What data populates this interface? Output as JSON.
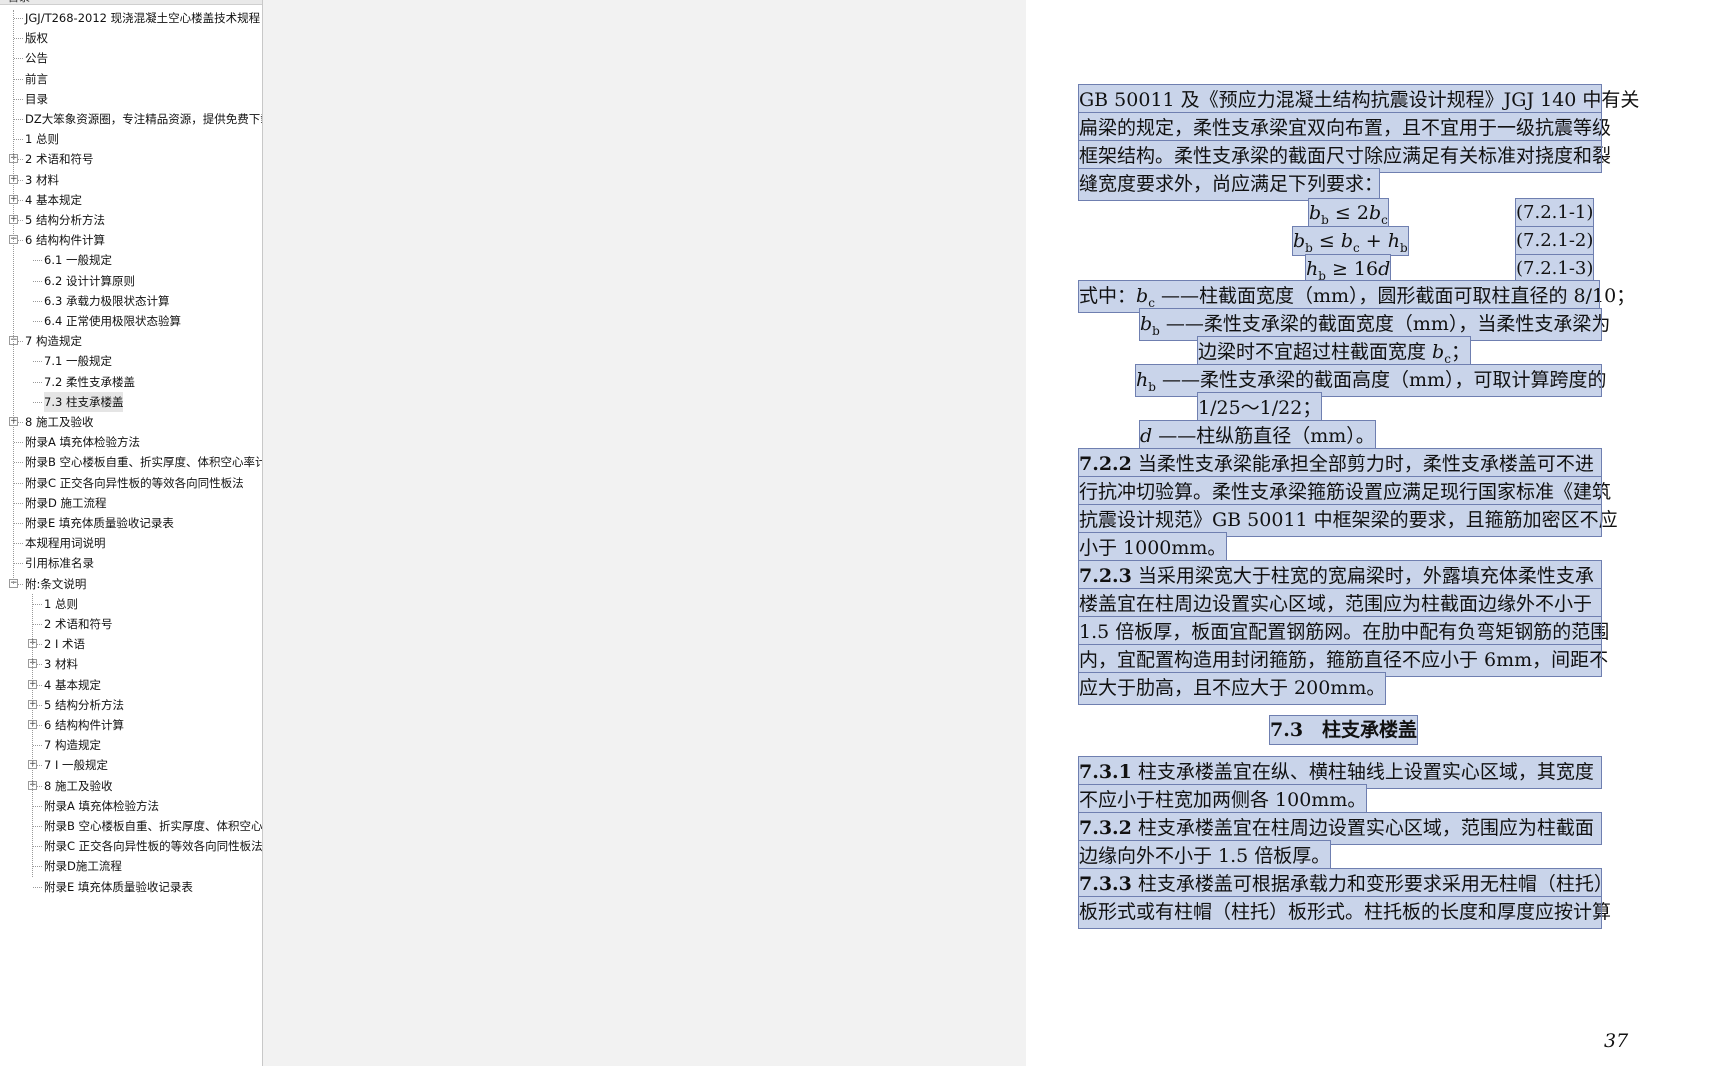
{
  "toc": {
    "header_label": "目录",
    "items": [
      {
        "label": "JGJ/T268-2012 现浇混凝土空心楼盖技术规程",
        "level": 1,
        "expander": ""
      },
      {
        "label": "版权",
        "level": 1,
        "expander": ""
      },
      {
        "label": "公告",
        "level": 1,
        "expander": ""
      },
      {
        "label": "前言",
        "level": 1,
        "expander": ""
      },
      {
        "label": "目录",
        "level": 1,
        "expander": ""
      },
      {
        "label": "DZ大笨象资源圈，专注精品资源，提供免费下载",
        "level": 1,
        "expander": ""
      },
      {
        "label": "1 总则",
        "level": 1,
        "expander": ""
      },
      {
        "label": "2 术语和符号",
        "level": 1,
        "expander": "+"
      },
      {
        "label": "3 材料",
        "level": 1,
        "expander": "+"
      },
      {
        "label": "4 基本规定",
        "level": 1,
        "expander": "+"
      },
      {
        "label": "5 结构分析方法",
        "level": 1,
        "expander": "+"
      },
      {
        "label": "6 结构构件计算",
        "level": 1,
        "expander": "-"
      },
      {
        "label": "6.1 一般规定",
        "level": 2,
        "expander": ""
      },
      {
        "label": "6.2 设计计算原则",
        "level": 2,
        "expander": ""
      },
      {
        "label": "6.3 承载力极限状态计算",
        "level": 2,
        "expander": ""
      },
      {
        "label": "6.4 正常使用极限状态验算",
        "level": 2,
        "expander": ""
      },
      {
        "label": "7 构造规定",
        "level": 1,
        "expander": "-"
      },
      {
        "label": "7.1 一般规定",
        "level": 2,
        "expander": ""
      },
      {
        "label": "7.2 柔性支承楼盖",
        "level": 2,
        "expander": ""
      },
      {
        "label": "7.3 柱支承楼盖",
        "level": 2,
        "expander": "",
        "selected": true
      },
      {
        "label": "8 施工及验收",
        "level": 1,
        "expander": "+"
      },
      {
        "label": "附录A 填充体检验方法",
        "level": 1,
        "expander": ""
      },
      {
        "label": "附录B 空心楼板自重、折实厚度、体积空心率计算",
        "level": 1,
        "expander": ""
      },
      {
        "label": "附录C 正交各向异性板的等效各向同性板法",
        "level": 1,
        "expander": ""
      },
      {
        "label": "附录D 施工流程",
        "level": 1,
        "expander": ""
      },
      {
        "label": "附录E 填充体质量验收记录表",
        "level": 1,
        "expander": ""
      },
      {
        "label": "本规程用词说明",
        "level": 1,
        "expander": ""
      },
      {
        "label": "引用标准名录",
        "level": 1,
        "expander": ""
      },
      {
        "label": "附:条文说明",
        "level": 1,
        "expander": "-"
      },
      {
        "label": "1 总则",
        "level": 2,
        "expander": ""
      },
      {
        "label": "2 术语和符号",
        "level": 2,
        "expander": ""
      },
      {
        "label": "2 I 术语",
        "level": 2,
        "expander": "+"
      },
      {
        "label": "3 材料",
        "level": 2,
        "expander": "+"
      },
      {
        "label": "4 基本规定",
        "level": 2,
        "expander": "+"
      },
      {
        "label": "5 结构分析方法",
        "level": 2,
        "expander": "+"
      },
      {
        "label": "6 结构构件计算",
        "level": 2,
        "expander": "+"
      },
      {
        "label": "7 构造规定",
        "level": 2,
        "expander": ""
      },
      {
        "label": "7 I 一般规定",
        "level": 2,
        "expander": "+"
      },
      {
        "label": "8 施工及验收",
        "level": 2,
        "expander": "+"
      },
      {
        "label": "附录A 填充体检验方法",
        "level": 2,
        "expander": ""
      },
      {
        "label": "附录B 空心楼板自重、折实厚度、体积空心率计算",
        "level": 2,
        "expander": ""
      },
      {
        "label": "附录C 正交各向异性板的等效各向同性板法",
        "level": 2,
        "expander": ""
      },
      {
        "label": "附录D施工流程",
        "level": 2,
        "expander": ""
      },
      {
        "label": "附录E 填充体质量验收记录表",
        "level": 2,
        "expander": ""
      }
    ]
  },
  "page": {
    "lines": [
      "GB 50011 及《预应力混凝土结构抗震设计规程》JGJ 140 中有关",
      "扁梁的规定，柔性支承梁宜双向布置，且不宜用于一级抗震等级",
      "框架结构。柔性支承梁的截面尺寸除应满足有关标准对挠度和裂",
      "缝宽度要求外，尚应满足下列要求："
    ],
    "equations": [
      {
        "expr": "bb ≤ 2bc",
        "number": "(7.2.1-1)"
      },
      {
        "expr": "bb ≤ bc + hb",
        "number": "(7.2.1-2)"
      },
      {
        "expr": "hb ≥ 16d",
        "number": "(7.2.1-3)"
      }
    ],
    "where": {
      "intro": "式中：",
      "bc_symbol": "bc",
      "bc_text": " ——柱截面宽度（mm），圆形截面可取柱直径的 8/10；",
      "bb_symbol": "bb",
      "bb_text_1": " ——柔性支承梁的截面宽度（mm），当柔性支承梁为",
      "bb_text_2": "边梁时不宜超过柱截面宽度 ",
      "bb_text_2_tail": "；",
      "hb_symbol": "hb",
      "hb_text_1": " ——柔性支承梁的截面高度（mm），可取计算跨度的",
      "hb_text_2": "1/25～1/22；",
      "d_symbol": "d",
      "d_text": " ——柱纵筋直径（mm）。"
    },
    "clause_722": {
      "number": "7.2.2",
      "lines": [
        "  当柔性支承梁能承担全部剪力时，柔性支承楼盖可不进",
        "行抗冲切验算。柔性支承梁箍筋设置应满足现行国家标准《建筑",
        "抗震设计规范》GB 50011 中框架梁的要求，且箍筋加密区不应",
        "小于 1000mm。"
      ]
    },
    "clause_723": {
      "number": "7.2.3",
      "lines": [
        "  当采用梁宽大于柱宽的宽扁梁时，外露填充体柔性支承",
        "楼盖宜在柱周边设置实心区域，范围应为柱截面边缘外不小于",
        "1.5 倍板厚，板面宜配置钢筋网。在肋中配有负弯矩钢筋的范围",
        "内，宜配置构造用封闭箍筋，箍筋直径不应小于 6mm，间距不",
        "应大于肋高，且不应大于 200mm。"
      ]
    },
    "section_heading": "7.3　柱支承楼盖",
    "clause_731": {
      "number": "7.3.1",
      "lines": [
        "  柱支承楼盖宜在纵、横柱轴线上设置实心区域，其宽度",
        "不应小于柱宽加两侧各 100mm。"
      ]
    },
    "clause_732": {
      "number": "7.3.2",
      "lines": [
        "  柱支承楼盖宜在柱周边设置实心区域，范围应为柱截面",
        "边缘向外不小于 1.5 倍板厚。"
      ]
    },
    "clause_733": {
      "number": "7.3.3",
      "lines": [
        "  柱支承楼盖可根据承载力和变形要求采用无柱帽（柱托）",
        "板形式或有柱帽（柱托）板形式。柱托板的长度和厚度应按计算"
      ]
    },
    "page_number": "37"
  },
  "colors": {
    "highlight": "#c9d4ea",
    "highlight_border": "#6f7fb0",
    "viewer_bg": "#f2f2f2"
  }
}
